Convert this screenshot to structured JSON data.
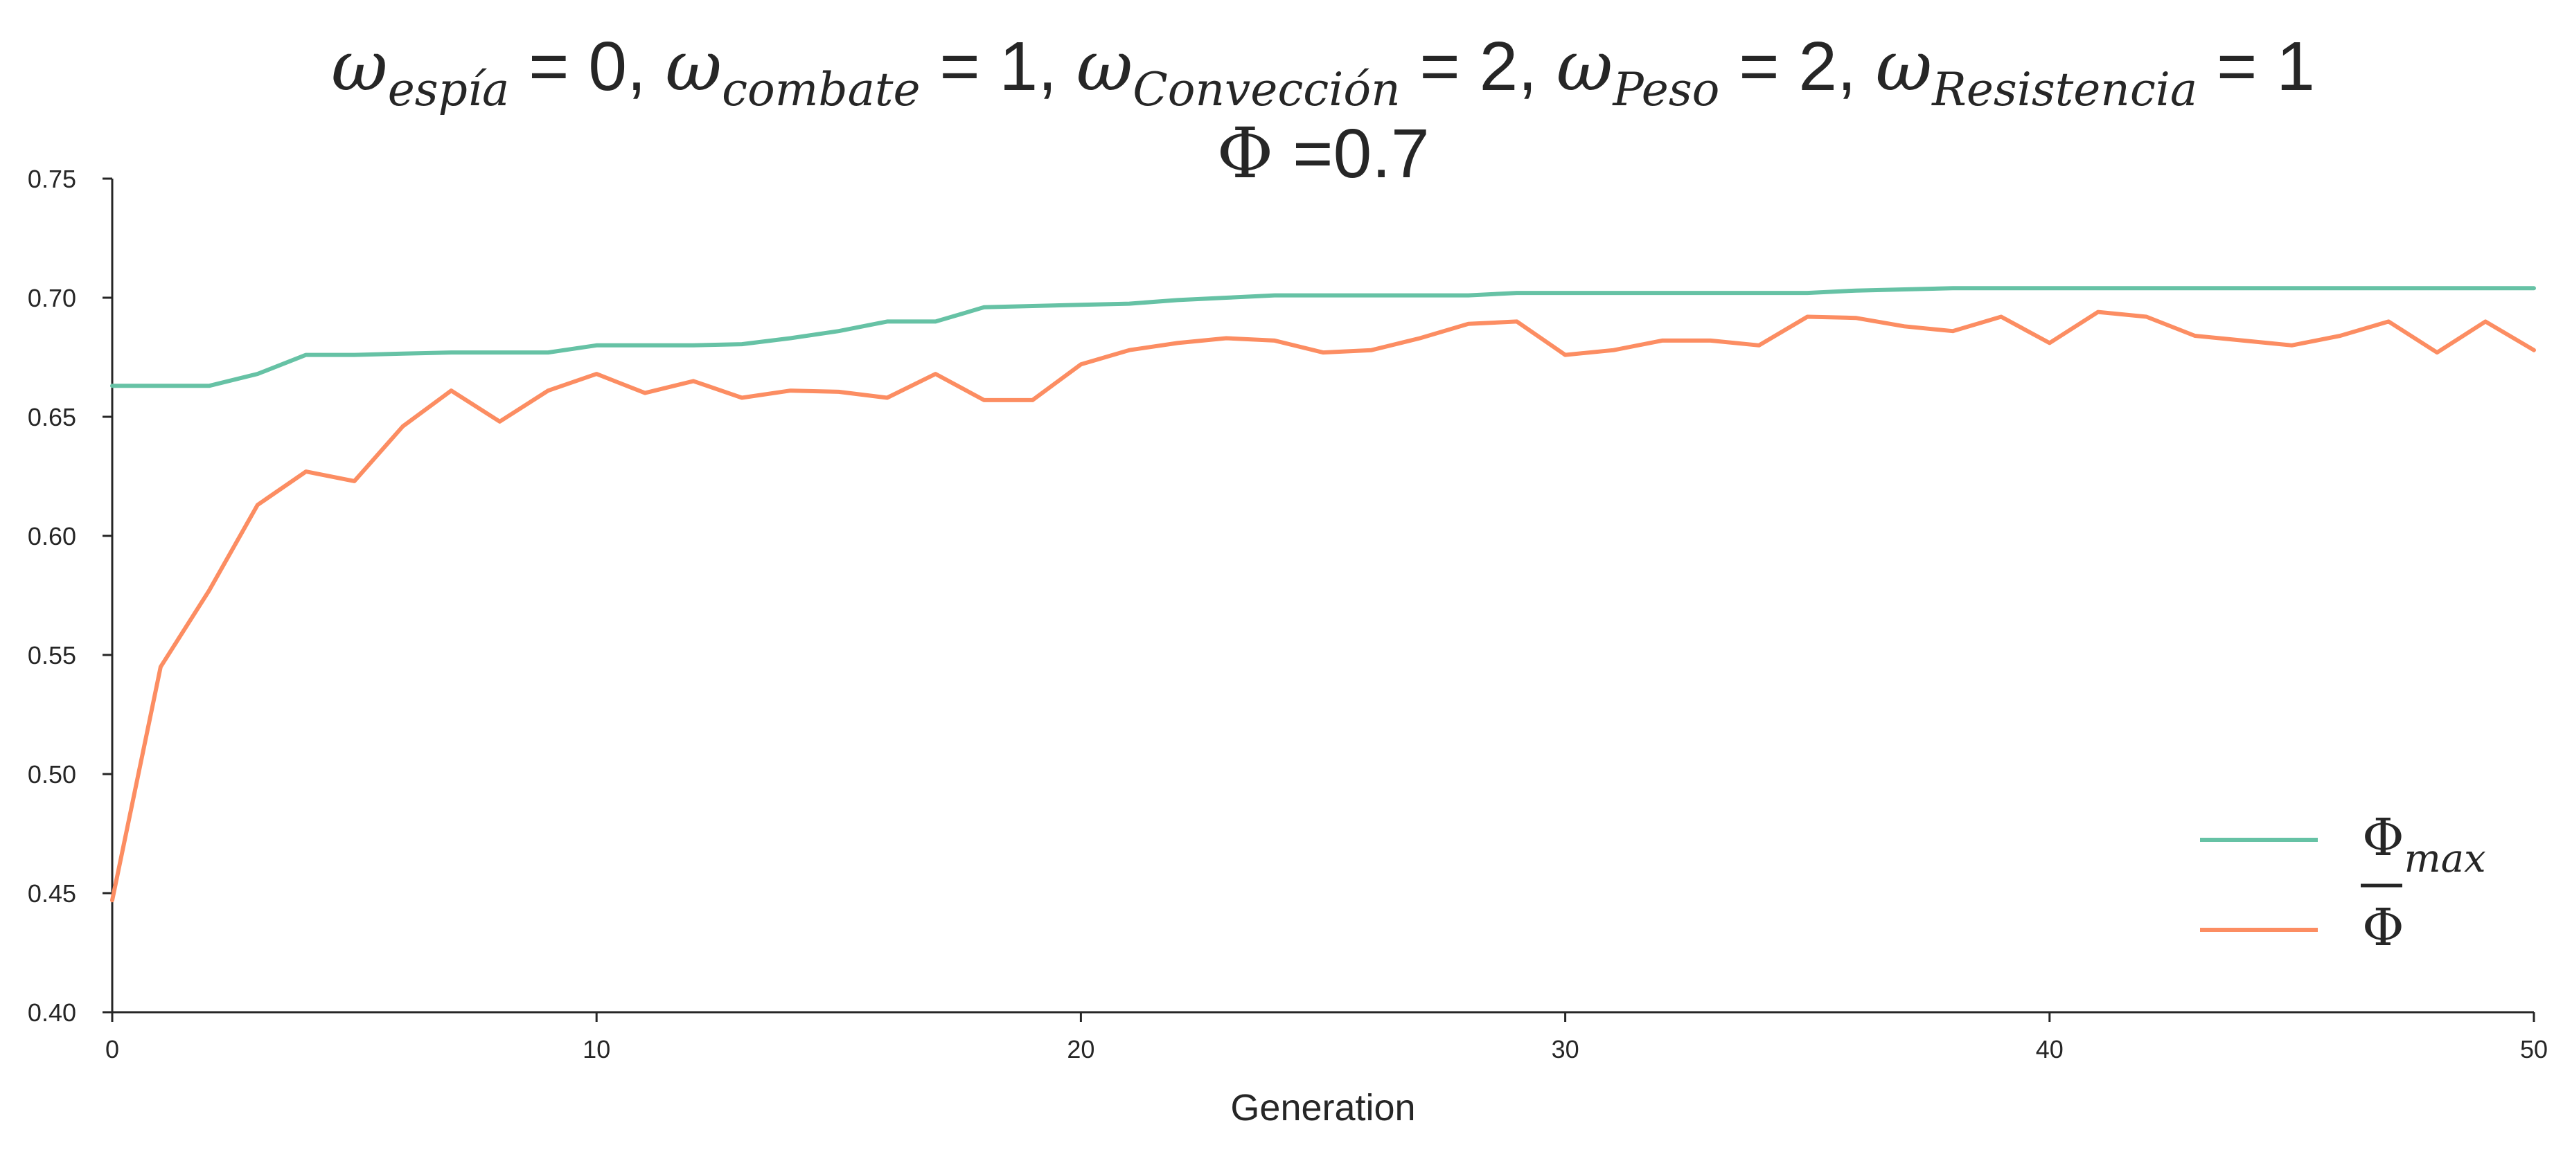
{
  "chart_data": {
    "type": "line",
    "title": {
      "line1": [
        {
          "symbol": "ω",
          "sub": "espía",
          "rest": " = 0, "
        },
        {
          "symbol": "ω",
          "sub": "combate",
          "rest": " = 1, "
        },
        {
          "symbol": "ω",
          "sub": "Convección",
          "rest": " = 2, "
        },
        {
          "symbol": "ω",
          "sub": "Peso",
          "rest": " = 2, "
        },
        {
          "symbol": "ω",
          "sub": "Resistencia",
          "rest": " = 1"
        }
      ],
      "line2": {
        "symbol": "Φ",
        "rest": " =0.7"
      }
    },
    "xlabel": "Generation",
    "ylabel": "",
    "xlim": [
      0,
      50
    ],
    "ylim": [
      0.4,
      0.75
    ],
    "xticks": [
      "0",
      "10",
      "20",
      "30",
      "40",
      "50"
    ],
    "yticks": [
      "0.40",
      "0.45",
      "0.50",
      "0.55",
      "0.60",
      "0.65",
      "0.70",
      "0.75"
    ],
    "grid": false,
    "legend_position": "lower-right",
    "x": [
      0,
      1,
      2,
      3,
      4,
      5,
      6,
      7,
      8,
      9,
      10,
      11,
      12,
      13,
      14,
      15,
      16,
      17,
      18,
      19,
      20,
      21,
      22,
      23,
      24,
      25,
      26,
      27,
      28,
      29,
      30,
      31,
      32,
      33,
      34,
      35,
      36,
      37,
      38,
      39,
      40,
      41,
      42,
      43,
      44,
      45,
      46,
      47,
      48,
      49,
      50
    ],
    "series": [
      {
        "name": "Φ_max",
        "legend": {
          "symbol": "Φ",
          "sub": "max",
          "overline": false
        },
        "color": "#66c2a5",
        "values": [
          0.663,
          0.663,
          0.663,
          0.668,
          0.676,
          0.676,
          0.6765,
          0.677,
          0.677,
          0.677,
          0.68,
          0.68,
          0.68,
          0.6805,
          0.683,
          0.686,
          0.69,
          0.69,
          0.696,
          0.6965,
          0.697,
          0.6975,
          0.699,
          0.7,
          0.701,
          0.701,
          0.701,
          0.701,
          0.701,
          0.702,
          0.702,
          0.702,
          0.702,
          0.702,
          0.702,
          0.702,
          0.703,
          0.7035,
          0.704,
          0.704,
          0.704,
          0.704,
          0.704,
          0.704,
          0.704,
          0.704,
          0.704,
          0.704,
          0.704,
          0.704,
          0.704
        ]
      },
      {
        "name": "Φ̄",
        "legend": {
          "symbol": "Φ",
          "sub": "",
          "overline": true
        },
        "color": "#fc8d62",
        "values": [
          0.447,
          0.545,
          0.577,
          0.613,
          0.627,
          0.623,
          0.646,
          0.661,
          0.648,
          0.661,
          0.668,
          0.66,
          0.665,
          0.658,
          0.661,
          0.6605,
          0.658,
          0.668,
          0.657,
          0.657,
          0.672,
          0.678,
          0.681,
          0.683,
          0.682,
          0.677,
          0.678,
          0.683,
          0.689,
          0.69,
          0.676,
          0.678,
          0.682,
          0.682,
          0.68,
          0.692,
          0.6915,
          0.688,
          0.686,
          0.692,
          0.681,
          0.694,
          0.692,
          0.684,
          0.682,
          0.68,
          0.684,
          0.69,
          0.677,
          0.69,
          0.678
        ]
      }
    ]
  }
}
